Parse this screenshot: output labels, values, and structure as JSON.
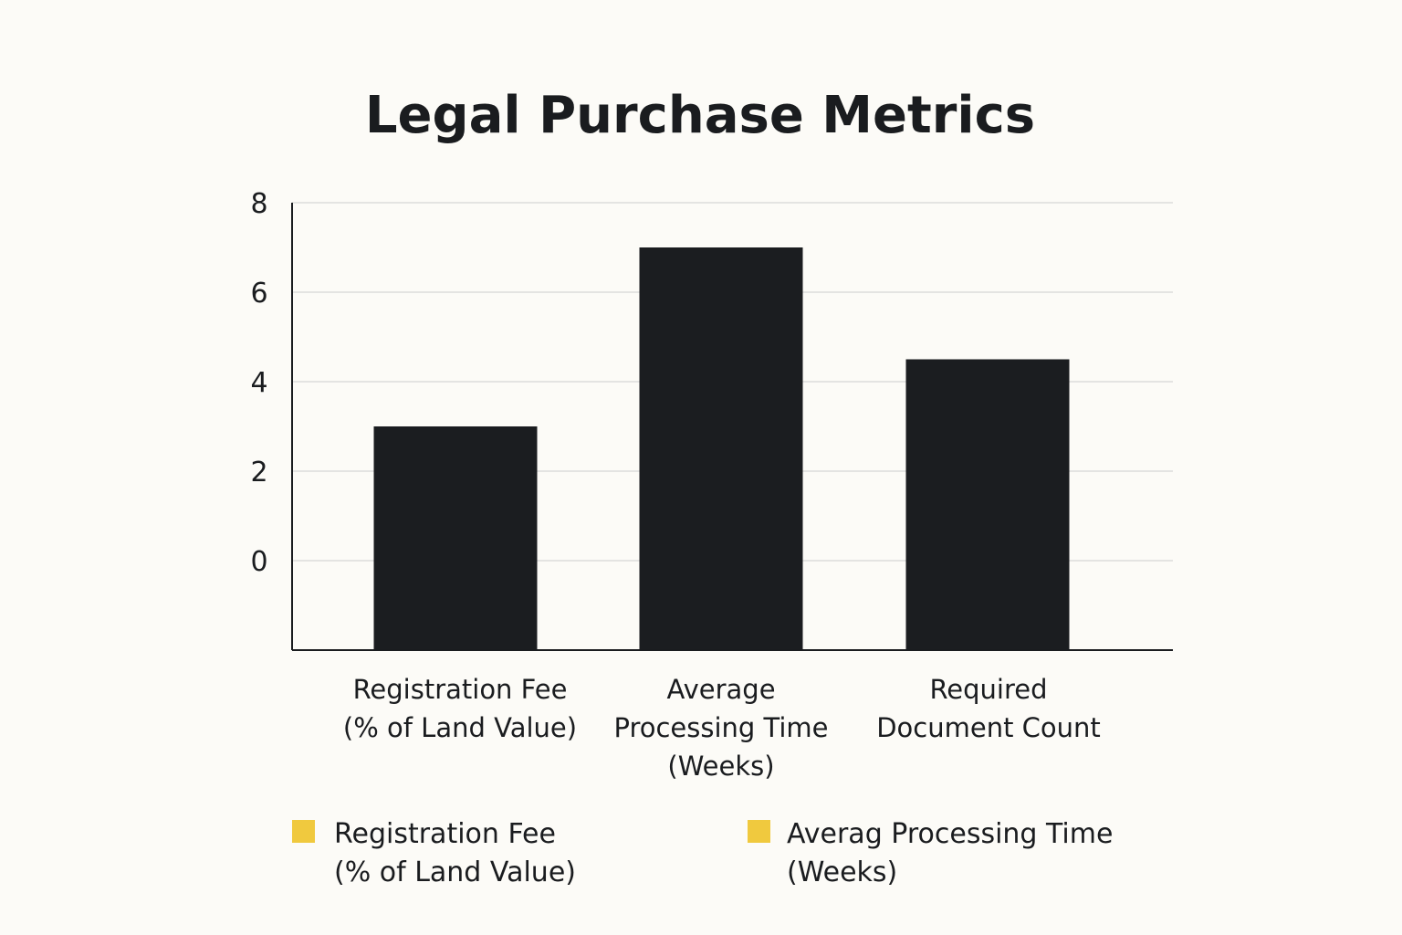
{
  "chart_data": {
    "type": "bar",
    "title": "Legal Purchase Metrics",
    "xlabel": "",
    "ylabel": "",
    "ylim": [
      -2,
      8
    ],
    "yticks": [
      0,
      2,
      4,
      6,
      8
    ],
    "grid": true,
    "categories": [
      [
        "Registration Fee",
        "(% of Land Value)"
      ],
      [
        "Average",
        "Processing Time",
        "(Weeks)"
      ],
      [
        "Required",
        "Document Count"
      ]
    ],
    "values": [
      3,
      7,
      4.5
    ],
    "legend": {
      "placement": "bottom",
      "entries": [
        {
          "lines": [
            "Registration Fee",
            "(% of Land Value)"
          ],
          "color": "#f0c93e"
        },
        {
          "lines": [
            "Averag Processing Time",
            "(Weeks)"
          ],
          "color": "#f0c93e"
        }
      ]
    }
  },
  "colors": {
    "background": "#fcfbf7",
    "bar": "#1b1d20",
    "text": "#1a1c1f",
    "grid": "#dcdcdc",
    "axis": "#1a1c1f"
  }
}
